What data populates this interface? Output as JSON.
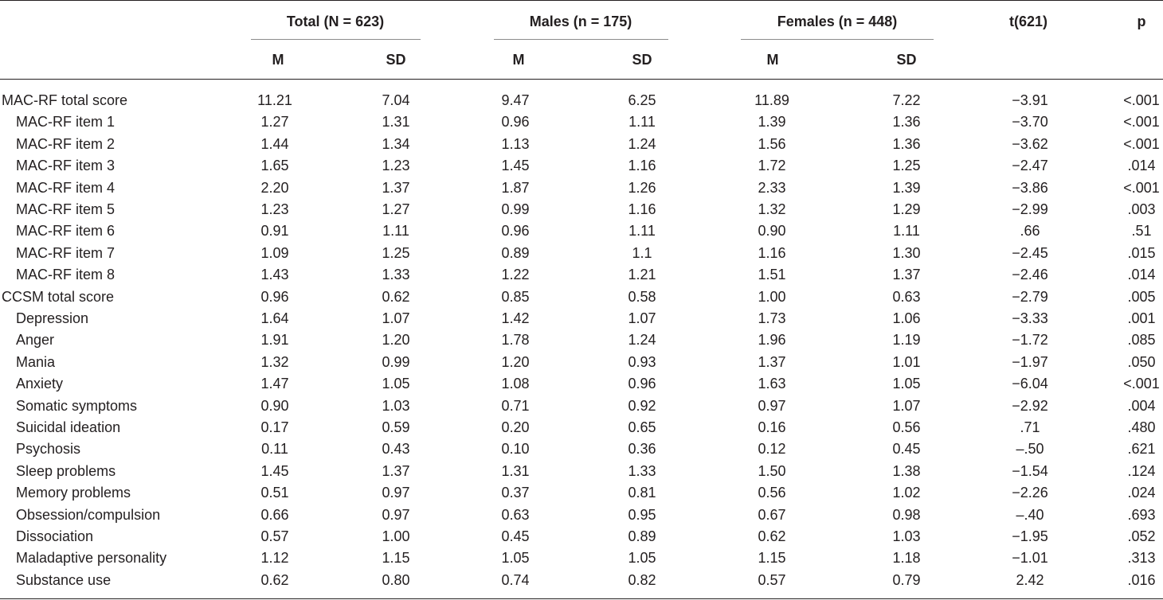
{
  "table": {
    "groups": [
      {
        "label": "Total (N = 623)"
      },
      {
        "label": "Males (n = 175)"
      },
      {
        "label": "Females (n = 448)"
      }
    ],
    "t_header": "t(621)",
    "p_header": "p",
    "sub_m": "M",
    "sub_sd": "SD",
    "rows": [
      {
        "label": "MAC-RF total score",
        "indent": 0,
        "values": [
          "11.21",
          "7.04",
          "9.47",
          "6.25",
          "11.89",
          "7.22",
          "−3.91",
          "<.001"
        ]
      },
      {
        "label": "MAC-RF item 1",
        "indent": 1,
        "values": [
          "1.27",
          "1.31",
          "0.96",
          "1.11",
          "1.39",
          "1.36",
          "−3.70",
          "<.001"
        ]
      },
      {
        "label": "MAC-RF item 2",
        "indent": 1,
        "values": [
          "1.44",
          "1.34",
          "1.13",
          "1.24",
          "1.56",
          "1.36",
          "−3.62",
          "<.001"
        ]
      },
      {
        "label": "MAC-RF item 3",
        "indent": 1,
        "values": [
          "1.65",
          "1.23",
          "1.45",
          "1.16",
          "1.72",
          "1.25",
          "−2.47",
          ".014"
        ]
      },
      {
        "label": "MAC-RF item 4",
        "indent": 1,
        "values": [
          "2.20",
          "1.37",
          "1.87",
          "1.26",
          "2.33",
          "1.39",
          "−3.86",
          "<.001"
        ]
      },
      {
        "label": "MAC-RF item 5",
        "indent": 1,
        "values": [
          "1.23",
          "1.27",
          "0.99",
          "1.16",
          "1.32",
          "1.29",
          "−2.99",
          ".003"
        ]
      },
      {
        "label": "MAC-RF item 6",
        "indent": 1,
        "values": [
          "0.91",
          "1.11",
          "0.96",
          "1.11",
          "0.90",
          "1.11",
          ".66",
          ".51"
        ]
      },
      {
        "label": "MAC-RF item 7",
        "indent": 1,
        "values": [
          "1.09",
          "1.25",
          "0.89",
          "1.1",
          "1.16",
          "1.30",
          "−2.45",
          ".015"
        ]
      },
      {
        "label": "MAC-RF item 8",
        "indent": 1,
        "values": [
          "1.43",
          "1.33",
          "1.22",
          "1.21",
          "1.51",
          "1.37",
          "−2.46",
          ".014"
        ]
      },
      {
        "label": "CCSM total score",
        "indent": 0,
        "values": [
          "0.96",
          "0.62",
          "0.85",
          "0.58",
          "1.00",
          "0.63",
          "−2.79",
          ".005"
        ]
      },
      {
        "label": "Depression",
        "indent": 1,
        "values": [
          "1.64",
          "1.07",
          "1.42",
          "1.07",
          "1.73",
          "1.06",
          "−3.33",
          ".001"
        ]
      },
      {
        "label": "Anger",
        "indent": 1,
        "values": [
          "1.91",
          "1.20",
          "1.78",
          "1.24",
          "1.96",
          "1.19",
          "−1.72",
          ".085"
        ]
      },
      {
        "label": "Mania",
        "indent": 1,
        "values": [
          "1.32",
          "0.99",
          "1.20",
          "0.93",
          "1.37",
          "1.01",
          "−1.97",
          ".050"
        ]
      },
      {
        "label": "Anxiety",
        "indent": 1,
        "values": [
          "1.47",
          "1.05",
          "1.08",
          "0.96",
          "1.63",
          "1.05",
          "−6.04",
          "<.001"
        ]
      },
      {
        "label": "Somatic symptoms",
        "indent": 1,
        "values": [
          "0.90",
          "1.03",
          "0.71",
          "0.92",
          "0.97",
          "1.07",
          "−2.92",
          ".004"
        ]
      },
      {
        "label": "Suicidal ideation",
        "indent": 1,
        "values": [
          "0.17",
          "0.59",
          "0.20",
          "0.65",
          "0.16",
          "0.56",
          ".71",
          ".480"
        ]
      },
      {
        "label": "Psychosis",
        "indent": 1,
        "values": [
          "0.11",
          "0.43",
          "0.10",
          "0.36",
          "0.12",
          "0.45",
          "–.50",
          ".621"
        ]
      },
      {
        "label": "Sleep problems",
        "indent": 1,
        "values": [
          "1.45",
          "1.37",
          "1.31",
          "1.33",
          "1.50",
          "1.38",
          "−1.54",
          ".124"
        ]
      },
      {
        "label": "Memory problems",
        "indent": 1,
        "values": [
          "0.51",
          "0.97",
          "0.37",
          "0.81",
          "0.56",
          "1.02",
          "−2.26",
          ".024"
        ]
      },
      {
        "label": "Obsession/compulsion",
        "indent": 1,
        "values": [
          "0.66",
          "0.97",
          "0.63",
          "0.95",
          "0.67",
          "0.98",
          "–.40",
          ".693"
        ]
      },
      {
        "label": "Dissociation",
        "indent": 1,
        "values": [
          "0.57",
          "1.00",
          "0.45",
          "0.89",
          "0.62",
          "1.03",
          "−1.95",
          ".052"
        ]
      },
      {
        "label": "Maladaptive personality",
        "indent": 1,
        "values": [
          "1.12",
          "1.15",
          "1.05",
          "1.05",
          "1.15",
          "1.18",
          "−1.01",
          ".313"
        ]
      },
      {
        "label": "Substance use",
        "indent": 1,
        "values": [
          "0.62",
          "0.80",
          "0.74",
          "0.82",
          "0.57",
          "0.79",
          "2.42",
          ".016"
        ]
      }
    ]
  }
}
